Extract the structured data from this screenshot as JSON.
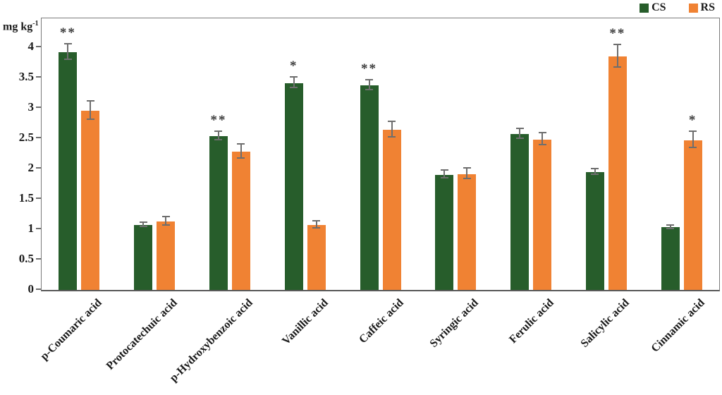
{
  "figure": {
    "y_axis_label_base": "mg kg",
    "y_axis_label_sup": "-1"
  },
  "chart_data": {
    "type": "bar",
    "title": "",
    "xlabel": "",
    "ylabel": "mg kg-1",
    "ylim": [
      0,
      4.4
    ],
    "yticks": [
      0,
      0.5,
      1,
      1.5,
      2,
      2.5,
      3,
      3.5,
      4
    ],
    "grid": false,
    "legend_position": "top-right",
    "categories": [
      "p-Coumaric acid",
      "Protocatechuic acid",
      "p-Hydroxybenzoic acid",
      "Vanillic acid",
      "Caffeic acid",
      "Syringic acid",
      "Ferulic acid",
      "Salicylic acid",
      "Cinnamic acid"
    ],
    "series": [
      {
        "name": "CS",
        "color": "#275d2b",
        "values": [
          3.92,
          1.07,
          2.54,
          3.41,
          3.37,
          1.9,
          2.57,
          1.94,
          1.03
        ],
        "errors": [
          0.13,
          0.04,
          0.07,
          0.09,
          0.08,
          0.06,
          0.08,
          0.05,
          0.03
        ]
      },
      {
        "name": "RS",
        "color": "#f08233",
        "values": [
          2.95,
          1.13,
          2.28,
          1.07,
          2.64,
          1.91,
          2.48,
          3.85,
          2.47
        ],
        "errors": [
          0.15,
          0.07,
          0.12,
          0.06,
          0.13,
          0.09,
          0.1,
          0.19,
          0.13
        ]
      }
    ],
    "significance": [
      {
        "series": "CS",
        "marker": "**"
      },
      null,
      {
        "series": "CS",
        "marker": "**"
      },
      {
        "series": "CS",
        "marker": "*"
      },
      {
        "series": "CS",
        "marker": "**"
      },
      null,
      null,
      {
        "series": "RS",
        "marker": "**"
      },
      {
        "series": "RS",
        "marker": "*"
      }
    ]
  }
}
